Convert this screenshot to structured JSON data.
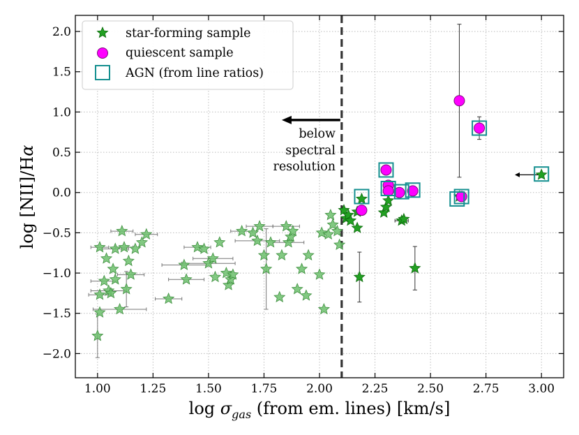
{
  "chart_data": {
    "type": "scatter",
    "xlabel_prefix": "log ",
    "xlabel_symbol": "σ",
    "xlabel_subscript": "gas",
    "xlabel_suffix": " (from em. lines) [km/s]",
    "ylabel_prefix": "log [NII]/H",
    "ylabel_symbol": "α",
    "xlim": [
      0.9,
      3.1
    ],
    "ylim": [
      -2.3,
      2.2
    ],
    "xticks": [
      1.0,
      1.25,
      1.5,
      1.75,
      2.0,
      2.25,
      2.5,
      2.75,
      3.0
    ],
    "yticks": [
      -2.0,
      -1.5,
      -1.0,
      -0.5,
      0.0,
      0.5,
      1.0,
      1.5,
      2.0
    ],
    "xtick_labels": [
      "1.00",
      "1.25",
      "1.50",
      "1.75",
      "2.00",
      "2.25",
      "2.50",
      "2.75",
      "3.00"
    ],
    "ytick_labels": [
      "−2.0",
      "−1.5",
      "−1.0",
      "−0.5",
      "0.0",
      "0.5",
      "1.0",
      "1.5",
      "2.0"
    ],
    "grid": true,
    "legend_position": "top-left",
    "legend": [
      {
        "key": "sf",
        "label": "star-forming sample"
      },
      {
        "key": "q",
        "label": "quiescent sample"
      },
      {
        "key": "agn",
        "label": "AGN (from line ratios)"
      }
    ],
    "colors": {
      "sf_fill": "#22a022",
      "sf_edge": "#0d6a0d",
      "sf_low_fill": "#6cbf6c",
      "q_fill": "#ff00ff",
      "q_edge": "#7a0a7a",
      "agn_edge": "#148f8f",
      "errorbar": "#333333",
      "threshold": "#333333",
      "grid": "#bbbbbb"
    },
    "resolution_limit_x": 2.1,
    "annotation": {
      "lines": [
        "below",
        "spectral",
        "resolution"
      ],
      "arrow_from": [
        2.1,
        0.9
      ],
      "arrow_to": [
        1.83,
        0.9
      ]
    },
    "series": [
      {
        "name": "star-forming sample (below spectral resolution)",
        "style": "sf_low",
        "points": [
          {
            "x": 1.0,
            "y": -1.78,
            "yerr": 0.27
          },
          {
            "x": 1.01,
            "y": -1.49
          },
          {
            "x": 1.01,
            "y": -1.27,
            "xerr": 0.05
          },
          {
            "x": 1.01,
            "y": -0.68,
            "xerr": 0.04
          },
          {
            "x": 1.03,
            "y": -1.1,
            "xerr": 0.06
          },
          {
            "x": 1.04,
            "y": -0.82
          },
          {
            "x": 1.05,
            "y": -1.22,
            "xerr": 0.08
          },
          {
            "x": 1.06,
            "y": -1.25
          },
          {
            "x": 1.07,
            "y": -0.95
          },
          {
            "x": 1.08,
            "y": -0.7,
            "xerr": 0.06
          },
          {
            "x": 1.08,
            "y": -1.08
          },
          {
            "x": 1.1,
            "y": -1.45,
            "xerr": 0.12
          },
          {
            "x": 1.11,
            "y": -0.48,
            "xerr": 0.05
          },
          {
            "x": 1.12,
            "y": -0.68,
            "xerr": 0.04
          },
          {
            "x": 1.13,
            "y": -1.2,
            "yerr": 0.22
          },
          {
            "x": 1.14,
            "y": -0.85
          },
          {
            "x": 1.15,
            "y": -1.02,
            "xerr": 0.06
          },
          {
            "x": 1.17,
            "y": -0.7
          },
          {
            "x": 1.2,
            "y": -0.62
          },
          {
            "x": 1.22,
            "y": -0.52,
            "xerr": 0.05
          },
          {
            "x": 1.32,
            "y": -1.32,
            "xerr": 0.06
          },
          {
            "x": 1.39,
            "y": -0.9,
            "xerr": 0.1
          },
          {
            "x": 1.4,
            "y": -1.08,
            "xerr": 0.08
          },
          {
            "x": 1.45,
            "y": -0.68,
            "xerr": 0.06
          },
          {
            "x": 1.48,
            "y": -0.7
          },
          {
            "x": 1.5,
            "y": -0.88,
            "xerr": 0.12
          },
          {
            "x": 1.52,
            "y": -0.82,
            "xerr": 0.09
          },
          {
            "x": 1.53,
            "y": -1.05
          },
          {
            "x": 1.55,
            "y": -0.62
          },
          {
            "x": 1.58,
            "y": -1.0
          },
          {
            "x": 1.59,
            "y": -1.15
          },
          {
            "x": 1.6,
            "y": -1.08
          },
          {
            "x": 1.61,
            "y": -1.02
          },
          {
            "x": 1.65,
            "y": -0.48,
            "xerr": 0.05
          },
          {
            "x": 1.7,
            "y": -0.5
          },
          {
            "x": 1.72,
            "y": -0.6,
            "xerr": 0.1
          },
          {
            "x": 1.73,
            "y": -0.42,
            "xerr": 0.06
          },
          {
            "x": 1.75,
            "y": -0.78
          },
          {
            "x": 1.76,
            "y": -0.95,
            "yerr": 0.5
          },
          {
            "x": 1.78,
            "y": -0.62
          },
          {
            "x": 1.82,
            "y": -1.3
          },
          {
            "x": 1.83,
            "y": -0.78
          },
          {
            "x": 1.85,
            "y": -0.42,
            "xerr": 0.06
          },
          {
            "x": 1.86,
            "y": -0.62,
            "xerr": 0.07
          },
          {
            "x": 1.87,
            "y": -0.55
          },
          {
            "x": 1.88,
            "y": -0.48
          },
          {
            "x": 1.9,
            "y": -1.2
          },
          {
            "x": 1.92,
            "y": -0.95
          },
          {
            "x": 1.94,
            "y": -1.28
          },
          {
            "x": 1.95,
            "y": -0.78
          },
          {
            "x": 2.0,
            "y": -1.02
          },
          {
            "x": 2.01,
            "y": -0.5
          },
          {
            "x": 2.02,
            "y": -1.45
          },
          {
            "x": 2.04,
            "y": -0.52
          },
          {
            "x": 2.05,
            "y": -0.28
          },
          {
            "x": 2.06,
            "y": -0.4
          },
          {
            "x": 2.08,
            "y": -0.48
          },
          {
            "x": 2.09,
            "y": -0.65
          }
        ]
      },
      {
        "name": "star-forming sample",
        "style": "sf",
        "points": [
          {
            "x": 2.11,
            "y": -0.22
          },
          {
            "x": 2.12,
            "y": -0.32
          },
          {
            "x": 2.13,
            "y": -0.28
          },
          {
            "x": 2.14,
            "y": -0.35
          },
          {
            "x": 2.17,
            "y": -0.44
          },
          {
            "x": 2.17,
            "y": -0.24
          },
          {
            "x": 2.18,
            "y": -1.05,
            "yerr": 0.31
          },
          {
            "x": 2.19,
            "y": -0.08
          },
          {
            "x": 2.29,
            "y": -0.25
          },
          {
            "x": 2.3,
            "y": -0.18
          },
          {
            "x": 2.31,
            "y": -0.1
          },
          {
            "x": 2.37,
            "y": -0.35,
            "xerr": 0.03
          },
          {
            "x": 2.38,
            "y": -0.33
          },
          {
            "x": 2.43,
            "y": -0.94,
            "yerr": 0.27
          },
          {
            "x": 2.63,
            "y": -0.05
          },
          {
            "x": 3.0,
            "y": 0.22,
            "xlimit": 0.12
          }
        ]
      },
      {
        "name": "quiescent sample",
        "style": "q",
        "points": [
          {
            "x": 2.19,
            "y": -0.22
          },
          {
            "x": 2.3,
            "y": 0.28
          },
          {
            "x": 2.31,
            "y": 0.09
          },
          {
            "x": 2.31,
            "y": 0.02
          },
          {
            "x": 2.36,
            "y": 0.0
          },
          {
            "x": 2.42,
            "y": 0.02
          },
          {
            "x": 2.63,
            "y": 1.14,
            "yerr_up": 0.95,
            "yerr_down": 0.95,
            "xerr": 0.02
          },
          {
            "x": 2.64,
            "y": -0.05
          },
          {
            "x": 2.72,
            "y": 0.8,
            "yerr": 0.14
          }
        ]
      },
      {
        "name": "AGN (from line ratios)",
        "style": "agn",
        "points": [
          {
            "x": 2.19,
            "y": -0.05
          },
          {
            "x": 2.3,
            "y": 0.28
          },
          {
            "x": 2.31,
            "y": 0.05
          },
          {
            "x": 2.37,
            "y": 0.01
          },
          {
            "x": 2.42,
            "y": 0.03
          },
          {
            "x": 2.62,
            "y": -0.08
          },
          {
            "x": 2.64,
            "y": -0.05
          },
          {
            "x": 2.72,
            "y": 0.8
          },
          {
            "x": 3.0,
            "y": 0.23
          }
        ]
      }
    ]
  }
}
